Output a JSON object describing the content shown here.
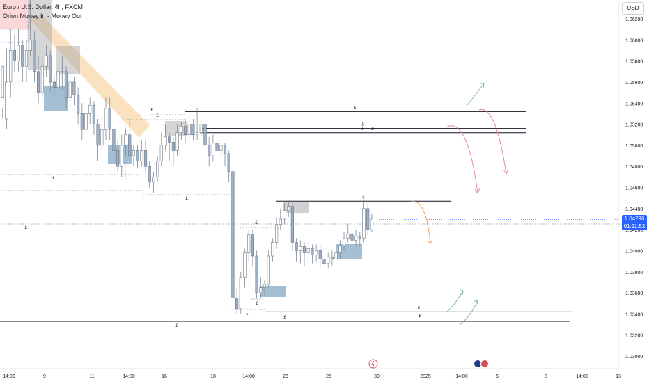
{
  "header": {
    "symbol": "Euro / U.S. Dollar, 4h, FXCM",
    "indicator": "Orion Money In - Money Out",
    "currency": "USD"
  },
  "last_price": {
    "value": "1.04296",
    "countdown": "01:11:52"
  },
  "colors": {
    "up": "#ffffff",
    "down": "#9db0c9",
    "wick": "#7d8793",
    "demand_zone": "#4a7fa7",
    "supply_zone": "#a3a3a3",
    "supply_zone_top": "#f4b8b8",
    "trend_band": "#f5c98a",
    "price_tag": "#2962ff",
    "arrow_red": "#e98a9c",
    "arrow_orange": "#f3a36f",
    "arrow_green": "#7fb59a"
  },
  "icons": {
    "event_1": "lightning-icon",
    "event_2": "flag-icons"
  },
  "chart_data": {
    "type": "candlestick",
    "y_ticks": [
      "1.06200",
      "1.06000",
      "1.05800",
      "1.05600",
      "1.05400",
      "1.05200",
      "1.05000",
      "1.04800",
      "1.04600",
      "1.04400",
      "1.04200",
      "1.04000",
      "1.03800",
      "1.03600",
      "1.03400",
      "1.03200",
      "1.03000"
    ],
    "x_ticks": [
      "14:00",
      "9",
      "11",
      "14:00",
      "16",
      "18",
      "14:00",
      "23",
      "26",
      "30",
      "2025",
      "14:00",
      "6",
      "8",
      "14:00",
      "13"
    ],
    "ylim": [
      1.029,
      1.063
    ],
    "candles": [
      [
        1.0545,
        1.0575,
        1.0535,
        1.0525
      ],
      [
        1.0525,
        1.056,
        1.0592,
        1.0515
      ],
      [
        1.056,
        1.059,
        1.061,
        1.0545
      ],
      [
        1.059,
        1.058,
        1.0605,
        1.057
      ],
      [
        1.058,
        1.0595,
        1.061,
        1.057
      ],
      [
        1.0595,
        1.0575,
        1.06,
        1.056
      ],
      [
        1.0575,
        1.059,
        1.06,
        1.056
      ],
      [
        1.059,
        1.06,
        1.064,
        1.0585
      ],
      [
        1.06,
        1.057,
        1.0608,
        1.056
      ],
      [
        1.057,
        1.055,
        1.0585,
        1.054
      ],
      [
        1.055,
        1.0575,
        1.0585,
        1.0545
      ],
      [
        1.0575,
        1.0585,
        1.0595,
        1.0565
      ],
      [
        1.0585,
        1.056,
        1.059,
        1.055
      ],
      [
        1.056,
        1.0555,
        1.0565,
        1.0545
      ],
      [
        1.0555,
        1.057,
        1.059,
        1.055
      ],
      [
        1.057,
        1.057,
        1.0585,
        1.0552
      ],
      [
        1.057,
        1.0545,
        1.0575,
        1.0535
      ],
      [
        1.0545,
        1.056,
        1.057,
        1.0535
      ],
      [
        1.056,
        1.0548,
        1.0565,
        1.0538
      ],
      [
        1.0548,
        1.053,
        1.0555,
        1.052
      ],
      [
        1.053,
        1.0515,
        1.054,
        1.0505
      ],
      [
        1.0515,
        1.053,
        1.054,
        1.0505
      ],
      [
        1.053,
        1.0538,
        1.0545,
        1.052
      ],
      [
        1.0538,
        1.052,
        1.0542,
        1.051
      ],
      [
        1.052,
        1.05,
        1.0525,
        1.0485
      ],
      [
        1.05,
        1.0515,
        1.0528,
        1.0495
      ],
      [
        1.0515,
        1.0535,
        1.0545,
        1.0505
      ],
      [
        1.0535,
        1.0515,
        1.0545,
        1.0505
      ],
      [
        1.0515,
        1.0495,
        1.052,
        1.0485
      ],
      [
        1.0495,
        1.048,
        1.0505,
        1.0475
      ],
      [
        1.048,
        1.05,
        1.051,
        1.047
      ],
      [
        1.05,
        1.051,
        1.0515,
        1.049
      ],
      [
        1.051,
        1.049,
        1.0525,
        1.0485
      ],
      [
        1.049,
        1.0495,
        1.05,
        1.048
      ],
      [
        1.0495,
        1.0485,
        1.05,
        1.0478
      ],
      [
        1.0485,
        1.0495,
        1.0505,
        1.048
      ],
      [
        1.0495,
        1.048,
        1.0505,
        1.0475
      ],
      [
        1.048,
        1.0465,
        1.0485,
        1.046
      ],
      [
        1.0465,
        1.047,
        1.0475,
        1.0455
      ],
      [
        1.047,
        1.0485,
        1.049,
        1.0465
      ],
      [
        1.0485,
        1.05,
        1.0512,
        1.048
      ],
      [
        1.05,
        1.0508,
        1.052,
        1.0495
      ],
      [
        1.0508,
        1.0503,
        1.0512,
        1.0485
      ],
      [
        1.0503,
        1.0495,
        1.0508,
        1.048
      ],
      [
        1.0495,
        1.0512,
        1.052,
        1.049
      ],
      [
        1.0512,
        1.0518,
        1.0522,
        1.0505
      ],
      [
        1.0518,
        1.051,
        1.0525,
        1.0502
      ],
      [
        1.051,
        1.052,
        1.0528,
        1.0505
      ],
      [
        1.052,
        1.051,
        1.0525,
        1.0505
      ],
      [
        1.051,
        1.0512,
        1.0535,
        1.0505
      ],
      [
        1.0512,
        1.052,
        1.0522,
        1.0508
      ],
      [
        1.052,
        1.05,
        1.0525,
        1.0485
      ],
      [
        1.05,
        1.049,
        1.0508,
        1.048
      ],
      [
        1.049,
        1.0502,
        1.051,
        1.0485
      ],
      [
        1.0502,
        1.0495,
        1.0506,
        1.0485
      ],
      [
        1.0495,
        1.05,
        1.0505,
        1.0488
      ],
      [
        1.05,
        1.0492,
        1.0502,
        1.048
      ],
      [
        1.0492,
        1.0475,
        1.0495,
        1.0465
      ],
      [
        1.0475,
        1.0355,
        1.0478,
        1.0342
      ],
      [
        1.0355,
        1.0345,
        1.0365,
        1.034
      ],
      [
        1.0345,
        1.0375,
        1.038,
        1.034
      ],
      [
        1.0375,
        1.0398,
        1.0402,
        1.0365
      ],
      [
        1.0398,
        1.0415,
        1.042,
        1.039
      ],
      [
        1.0415,
        1.0395,
        1.042,
        1.0385
      ],
      [
        1.0395,
        1.036,
        1.04,
        1.0355
      ],
      [
        1.036,
        1.0365,
        1.0375,
        1.0355
      ],
      [
        1.0365,
        1.0368,
        1.0372,
        1.0358
      ],
      [
        1.0368,
        1.0395,
        1.04,
        1.0365
      ],
      [
        1.0395,
        1.0408,
        1.0412,
        1.039
      ],
      [
        1.0408,
        1.0425,
        1.0432,
        1.0402
      ],
      [
        1.0425,
        1.043,
        1.044,
        1.042
      ],
      [
        1.043,
        1.0438,
        1.0445,
        1.0425
      ],
      [
        1.0438,
        1.0442,
        1.0448,
        1.0432
      ],
      [
        1.0442,
        1.0408,
        1.0445,
        1.04
      ],
      [
        1.0408,
        1.04,
        1.0412,
        1.039
      ],
      [
        1.04,
        1.0404,
        1.041,
        1.0388
      ],
      [
        1.0404,
        1.0398,
        1.0408,
        1.0385
      ],
      [
        1.0398,
        1.0402,
        1.0408,
        1.039
      ],
      [
        1.0402,
        1.0396,
        1.0406,
        1.0388
      ],
      [
        1.0396,
        1.04,
        1.0406,
        1.039
      ],
      [
        1.04,
        1.0392,
        1.0405,
        1.0385
      ],
      [
        1.0392,
        1.0388,
        1.0396,
        1.038
      ],
      [
        1.0388,
        1.0394,
        1.0398,
        1.0384
      ],
      [
        1.0394,
        1.0392,
        1.04,
        1.0386
      ],
      [
        1.0392,
        1.0398,
        1.0402,
        1.0388
      ],
      [
        1.0398,
        1.0405,
        1.041,
        1.0392
      ],
      [
        1.0405,
        1.0412,
        1.0418,
        1.04
      ],
      [
        1.0412,
        1.0416,
        1.0425,
        1.0408
      ],
      [
        1.0416,
        1.041,
        1.042,
        1.0402
      ],
      [
        1.041,
        1.0414,
        1.042,
        1.0405
      ],
      [
        1.0414,
        1.0412,
        1.0418,
        1.0405
      ],
      [
        1.0412,
        1.044,
        1.0448,
        1.0408
      ],
      [
        1.044,
        1.042,
        1.0445,
        1.0415
      ],
      [
        1.042,
        1.043,
        1.0435,
        1.0418
      ]
    ],
    "levels": [
      {
        "price": 1.0532,
        "x_from": 265,
        "x_to": 755,
        "label": "£"
      },
      {
        "price": 1.0516,
        "x_from": 287,
        "x_to": 755,
        "label": "£"
      },
      {
        "price": 1.0512,
        "x_from": 287,
        "x_to": 755,
        "label": "£"
      },
      {
        "price": 1.0447,
        "x_from": 397,
        "x_to": 647,
        "label": "£"
      },
      {
        "price": 1.0342,
        "x_from": 380,
        "x_to": 823,
        "label": "£"
      },
      {
        "price": 1.0333,
        "x_from": 0,
        "x_to": 818,
        "label": "£"
      }
    ],
    "grid": false,
    "legend": "top-left"
  }
}
